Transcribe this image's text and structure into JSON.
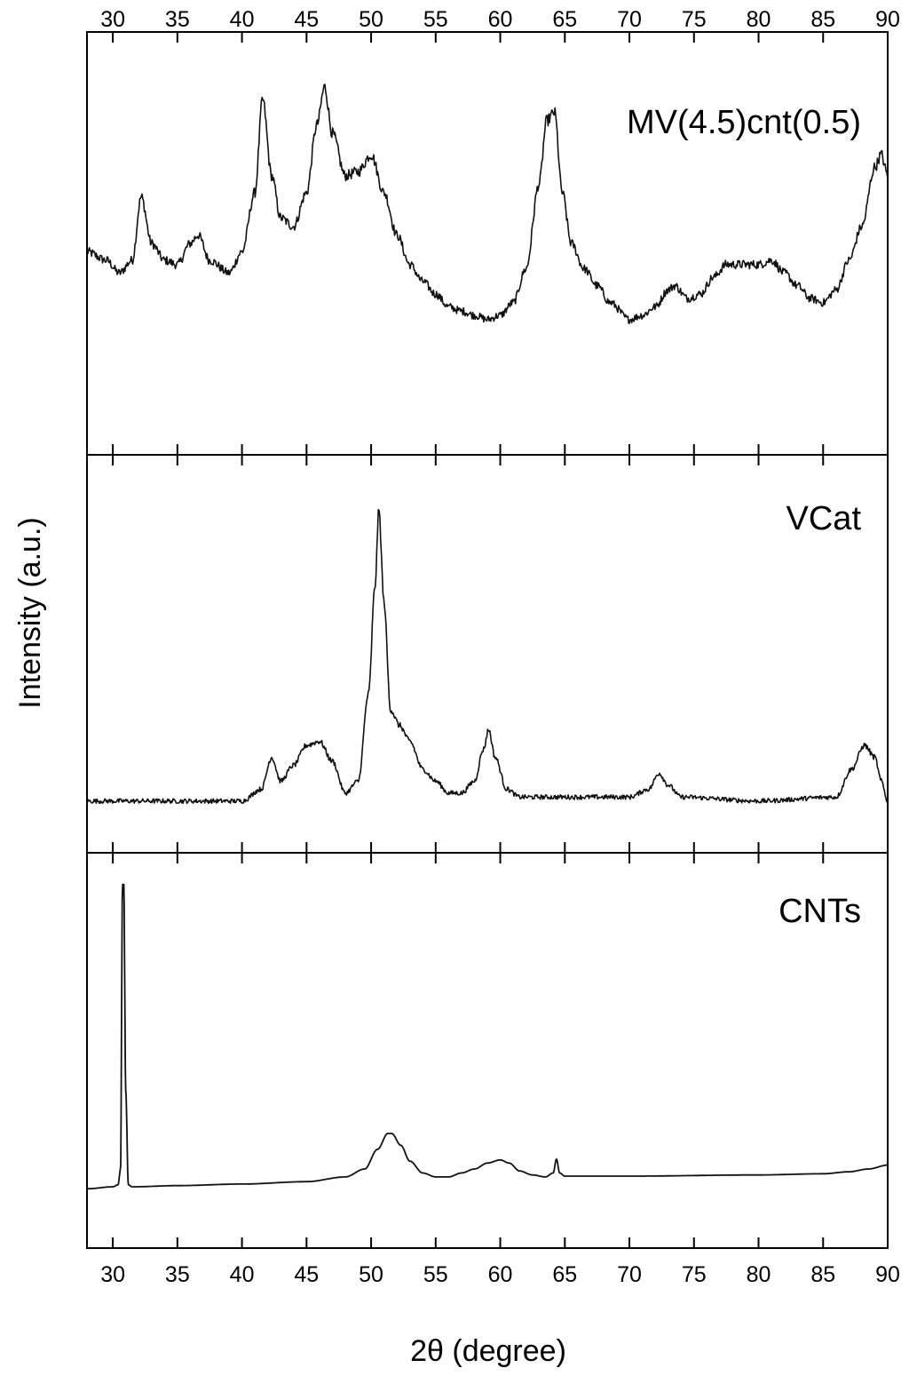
{
  "chart_data": {
    "type": "line",
    "xlabel": "2θ (degree)",
    "ylabel": "Intensity (a.u.)",
    "xlim": [
      28,
      90
    ],
    "xticks": [
      30,
      35,
      40,
      45,
      50,
      55,
      60,
      65,
      70,
      75,
      80,
      85,
      90
    ],
    "grid": false,
    "panels": [
      {
        "label": "MV(4.5)cnt(0.5)",
        "ylim": [
          0,
          1
        ],
        "noise": 0.01,
        "series": [
          {
            "x": [
              28,
              29.5,
              30.5,
              31.5,
              32.2,
              33,
              34,
              35,
              36,
              36.6,
              37.5,
              39,
              40,
              41,
              41.6,
              42.3,
              43,
              44,
              45,
              45.8,
              46.4,
              47,
              48,
              49,
              50,
              51,
              52,
              53,
              54,
              55,
              56,
              57,
              58,
              59,
              60,
              61,
              62,
              63,
              63.6,
              64.2,
              64.8,
              65.5,
              66.5,
              67.5,
              68.5,
              70,
              71,
              72,
              73,
              73.5,
              74.5,
              75.5,
              76.5,
              77.5,
              78.5,
              80,
              81,
              82,
              83,
              84,
              85,
              86,
              87,
              88,
              89,
              89.5,
              90
            ],
            "y": [
              0.48,
              0.46,
              0.43,
              0.46,
              0.61,
              0.5,
              0.46,
              0.45,
              0.5,
              0.52,
              0.46,
              0.43,
              0.48,
              0.62,
              0.84,
              0.66,
              0.56,
              0.54,
              0.62,
              0.78,
              0.87,
              0.76,
              0.66,
              0.67,
              0.71,
              0.62,
              0.52,
              0.45,
              0.41,
              0.38,
              0.35,
              0.34,
              0.33,
              0.32,
              0.33,
              0.36,
              0.44,
              0.64,
              0.79,
              0.81,
              0.62,
              0.5,
              0.44,
              0.4,
              0.36,
              0.32,
              0.33,
              0.35,
              0.39,
              0.4,
              0.37,
              0.38,
              0.42,
              0.45,
              0.45,
              0.45,
              0.46,
              0.43,
              0.4,
              0.37,
              0.36,
              0.39,
              0.46,
              0.54,
              0.68,
              0.71,
              0.66
            ]
          }
        ]
      },
      {
        "label": "VCat",
        "ylim": [
          0,
          1
        ],
        "noise": 0.008,
        "series": [
          {
            "x": [
              28,
              35,
              40,
              41.5,
              42.3,
              43,
              44,
              45,
              46,
              47,
              48,
              49,
              49.8,
              50.3,
              50.6,
              51,
              51.5,
              52.2,
              53,
              54,
              55,
              56,
              57,
              58,
              58.7,
              59.1,
              59.6,
              60.5,
              61.5,
              65,
              70,
              71.5,
              72.3,
              73,
              74,
              80,
              86,
              87.2,
              88.2,
              89,
              89.5,
              90
            ],
            "y": [
              0.13,
              0.13,
              0.13,
              0.16,
              0.24,
              0.18,
              0.22,
              0.27,
              0.28,
              0.23,
              0.15,
              0.18,
              0.4,
              0.67,
              0.86,
              0.63,
              0.36,
              0.32,
              0.28,
              0.21,
              0.18,
              0.15,
              0.15,
              0.18,
              0.26,
              0.31,
              0.24,
              0.16,
              0.14,
              0.14,
              0.14,
              0.16,
              0.2,
              0.17,
              0.14,
              0.13,
              0.14,
              0.21,
              0.27,
              0.24,
              0.18,
              0.13
            ]
          }
        ]
      },
      {
        "label": "CNTs",
        "ylim": [
          0,
          1
        ],
        "noise": 0,
        "series": [
          {
            "x": [
              28,
              30,
              30.4,
              30.6,
              30.75,
              30.85,
              31.0,
              31.2,
              31.5,
              35,
              40,
              45,
              48,
              49.5,
              50.5,
              51.3,
              51.6,
              52.3,
              53,
              54,
              55,
              56,
              57,
              58,
              59,
              60,
              60.7,
              61.5,
              62.5,
              63.5,
              64.1,
              64.35,
              64.6,
              65,
              70,
              80,
              85,
              87,
              88.5,
              90
            ],
            "y": [
              0.15,
              0.155,
              0.16,
              0.2,
              0.92,
              0.92,
              0.4,
              0.16,
              0.155,
              0.158,
              0.162,
              0.168,
              0.18,
              0.2,
              0.25,
              0.29,
              0.29,
              0.26,
              0.22,
              0.19,
              0.18,
              0.18,
              0.19,
              0.2,
              0.215,
              0.223,
              0.215,
              0.195,
              0.185,
              0.18,
              0.19,
              0.225,
              0.19,
              0.182,
              0.182,
              0.185,
              0.188,
              0.193,
              0.2,
              0.21
            ]
          }
        ]
      }
    ]
  }
}
